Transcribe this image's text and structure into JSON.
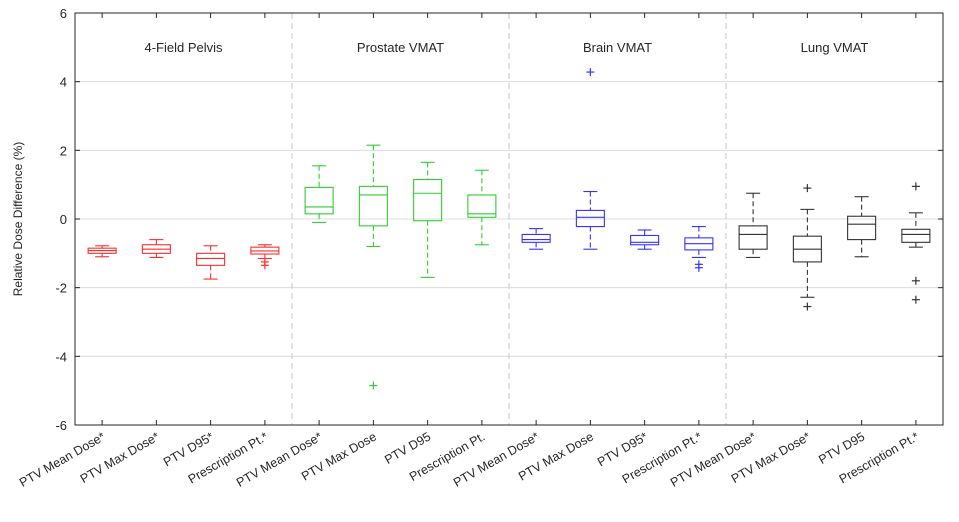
{
  "chart_data": {
    "type": "box",
    "ylabel": "Relative Dose Difference (%)",
    "ylim": [
      -6,
      6
    ],
    "yticks": [
      -6,
      -4,
      -2,
      0,
      2,
      4,
      6
    ],
    "grid": true,
    "groups": [
      {
        "label": "4-Field Pelvis",
        "color": "#ff2d2d"
      },
      {
        "label": "Prostate VMAT",
        "color": "#33cc33"
      },
      {
        "label": "Brain VMAT",
        "color": "#3333ff"
      },
      {
        "label": "Lung VMAT",
        "color": "#333333"
      }
    ],
    "categories": [
      "PTV Mean Dose*",
      "PTV Max Dose*",
      "PTV D95*",
      "Prescription Pt.*",
      "PTV Mean Dose*",
      "PTV Max Dose",
      "PTV D95",
      "Prescription Pt.",
      "PTV Mean Dose*",
      "PTV Max Dose",
      "PTV D95*",
      "Prescription Pt.*",
      "PTV Mean Dose*",
      "PTV Max Dose*",
      "PTV D95",
      "Prescription Pt.*"
    ],
    "boxes": [
      {
        "group": 0,
        "whisker_low": -1.1,
        "q1": -1.0,
        "median": -0.92,
        "q3": -0.85,
        "whisker_high": -0.78,
        "outliers": []
      },
      {
        "group": 0,
        "whisker_low": -1.12,
        "q1": -1.0,
        "median": -0.88,
        "q3": -0.75,
        "whisker_high": -0.6,
        "outliers": []
      },
      {
        "group": 0,
        "whisker_low": -1.75,
        "q1": -1.35,
        "median": -1.15,
        "q3": -1.0,
        "whisker_high": -0.78,
        "outliers": []
      },
      {
        "group": 0,
        "whisker_low": -1.15,
        "q1": -1.02,
        "median": -0.93,
        "q3": -0.82,
        "whisker_high": -0.75,
        "outliers": [
          -1.25,
          -1.35
        ]
      },
      {
        "group": 1,
        "whisker_low": -0.1,
        "q1": 0.15,
        "median": 0.35,
        "q3": 0.92,
        "whisker_high": 1.55,
        "outliers": []
      },
      {
        "group": 1,
        "whisker_low": -0.8,
        "q1": -0.2,
        "median": 0.7,
        "q3": 0.95,
        "whisker_high": 2.15,
        "outliers": [
          -4.85
        ]
      },
      {
        "group": 1,
        "whisker_low": -1.7,
        "q1": -0.05,
        "median": 0.75,
        "q3": 1.15,
        "whisker_high": 1.65,
        "outliers": []
      },
      {
        "group": 1,
        "whisker_low": -0.75,
        "q1": 0.05,
        "median": 0.15,
        "q3": 0.7,
        "whisker_high": 1.42,
        "outliers": []
      },
      {
        "group": 2,
        "whisker_low": -0.88,
        "q1": -0.68,
        "median": -0.6,
        "q3": -0.45,
        "whisker_high": -0.28,
        "outliers": []
      },
      {
        "group": 2,
        "whisker_low": -0.88,
        "q1": -0.22,
        "median": 0.05,
        "q3": 0.25,
        "whisker_high": 0.8,
        "outliers": [
          4.28
        ]
      },
      {
        "group": 2,
        "whisker_low": -0.88,
        "q1": -0.75,
        "median": -0.68,
        "q3": -0.48,
        "whisker_high": -0.32,
        "outliers": []
      },
      {
        "group": 2,
        "whisker_low": -1.12,
        "q1": -0.9,
        "median": -0.72,
        "q3": -0.55,
        "whisker_high": -0.22,
        "outliers": [
          -1.32,
          -1.42
        ]
      },
      {
        "group": 3,
        "whisker_low": -1.12,
        "q1": -0.88,
        "median": -0.45,
        "q3": -0.2,
        "whisker_high": 0.75,
        "outliers": []
      },
      {
        "group": 3,
        "whisker_low": -2.28,
        "q1": -1.25,
        "median": -0.88,
        "q3": -0.5,
        "whisker_high": 0.28,
        "outliers": [
          -2.55,
          0.9
        ]
      },
      {
        "group": 3,
        "whisker_low": -1.1,
        "q1": -0.6,
        "median": -0.15,
        "q3": 0.08,
        "whisker_high": 0.65,
        "outliers": []
      },
      {
        "group": 3,
        "whisker_low": -0.82,
        "q1": -0.68,
        "median": -0.45,
        "q3": -0.3,
        "whisker_high": 0.18,
        "outliers": [
          -1.8,
          -2.35,
          0.95
        ]
      }
    ]
  }
}
